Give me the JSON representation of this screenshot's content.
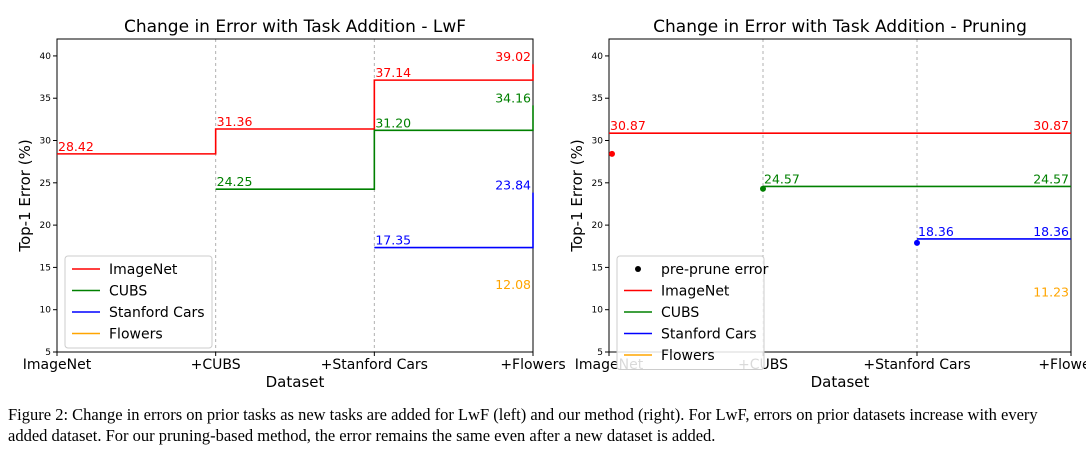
{
  "chart_data": [
    {
      "type": "line",
      "title": "Change in Error with Task Addition - LwF",
      "xlabel": "Dataset",
      "ylabel": "Top-1 Error (%)",
      "categories": [
        "ImageNet",
        "+CUBS",
        "+Stanford Cars",
        "+Flowers"
      ],
      "yticks": [
        5,
        10,
        15,
        20,
        25,
        30,
        35,
        40
      ],
      "ylim": [
        5,
        42
      ],
      "grid": "vertical-dashed",
      "legend_position": "lower-left",
      "series": [
        {
          "name": "ImageNet",
          "color": "#ff0000",
          "values": [
            28.42,
            31.36,
            37.14,
            39.02
          ],
          "labels": [
            "28.42",
            "31.36",
            "37.14",
            "39.02"
          ]
        },
        {
          "name": "CUBS",
          "color": "#008000",
          "values": [
            null,
            24.25,
            31.2,
            34.16
          ],
          "labels": [
            "",
            "24.25",
            "31.20",
            "34.16"
          ]
        },
        {
          "name": "Stanford Cars",
          "color": "#0000ff",
          "values": [
            null,
            null,
            17.35,
            23.84
          ],
          "labels": [
            "",
            "",
            "17.35",
            "23.84"
          ]
        },
        {
          "name": "Flowers",
          "color": "#ffa500",
          "values": [
            null,
            null,
            null,
            12.08
          ],
          "labels": [
            "",
            "",
            "",
            "12.08"
          ]
        }
      ]
    },
    {
      "type": "line",
      "title": "Change in Error with Task Addition - Pruning",
      "xlabel": "Dataset",
      "ylabel": "Top-1 Error (%)",
      "categories": [
        "ImageNet",
        "+CUBS",
        "+Stanford Cars",
        "+Flowers"
      ],
      "yticks": [
        5,
        10,
        15,
        20,
        25,
        30,
        35,
        40
      ],
      "ylim": [
        5,
        42
      ],
      "grid": "vertical-dashed",
      "legend_position": "lower-left",
      "legend_marker_label": "pre-prune error",
      "series": [
        {
          "name": "ImageNet",
          "color": "#ff0000",
          "values": [
            30.87,
            30.87,
            30.87,
            30.87
          ],
          "labels": [
            "30.87",
            "",
            "",
            "30.87"
          ],
          "preprune": 28.42
        },
        {
          "name": "CUBS",
          "color": "#008000",
          "values": [
            null,
            24.57,
            24.57,
            24.57
          ],
          "labels": [
            "",
            "24.57",
            "",
            "24.57"
          ],
          "preprune": 24.3
        },
        {
          "name": "Stanford Cars",
          "color": "#0000ff",
          "values": [
            null,
            null,
            18.36,
            18.36
          ],
          "labels": [
            "",
            "",
            "18.36",
            "18.36"
          ],
          "preprune": 17.9
        },
        {
          "name": "Flowers",
          "color": "#ffa500",
          "values": [
            null,
            null,
            null,
            11.23
          ],
          "labels": [
            "",
            "",
            "",
            "11.23"
          ],
          "preprune": null
        }
      ]
    }
  ],
  "caption": "Figure 2: Change in errors on prior tasks as new tasks are added for LwF (left) and our method (right). For LwF, errors on prior datasets increase with every added dataset. For our pruning-based method, the error remains the same even after a new dataset is added."
}
